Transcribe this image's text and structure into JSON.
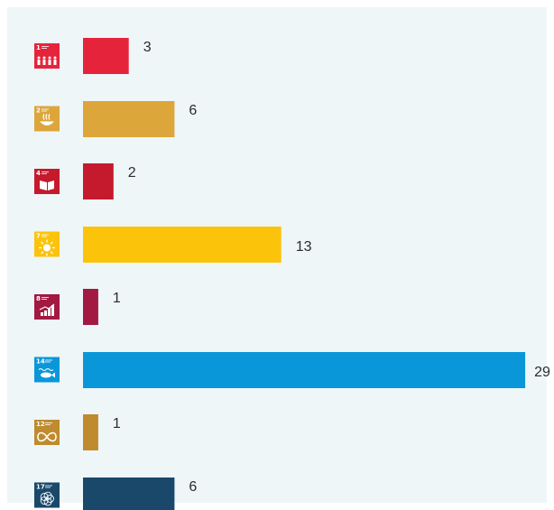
{
  "chart_data": {
    "type": "bar",
    "orientation": "horizontal",
    "title": "",
    "xlabel": "",
    "ylabel": "",
    "xlim": [
      0,
      29
    ],
    "grid": false,
    "legend": "none",
    "bars": [
      {
        "goal_number": "1",
        "icon": "sdg-1-no-poverty-icon",
        "value": 3,
        "color": "#e5243b"
      },
      {
        "goal_number": "2",
        "icon": "sdg-2-zero-hunger-icon",
        "value": 6,
        "color": "#dda63a"
      },
      {
        "goal_number": "4",
        "icon": "sdg-4-quality-education-icon",
        "value": 2,
        "color": "#c5192d"
      },
      {
        "goal_number": "7",
        "icon": "sdg-7-clean-energy-icon",
        "value": 13,
        "color": "#fcc30b"
      },
      {
        "goal_number": "8",
        "icon": "sdg-8-decent-work-icon",
        "value": 1,
        "color": "#a21942"
      },
      {
        "goal_number": "14",
        "icon": "sdg-14-life-below-water-icon",
        "value": 29,
        "color": "#0a97d9"
      },
      {
        "goal_number": "12",
        "icon": "sdg-12-responsible-consumption-icon",
        "value": 1,
        "color": "#bf8b2e"
      },
      {
        "goal_number": "17",
        "icon": "sdg-17-partnerships-icon",
        "value": 6,
        "color": "#19486a"
      }
    ]
  }
}
